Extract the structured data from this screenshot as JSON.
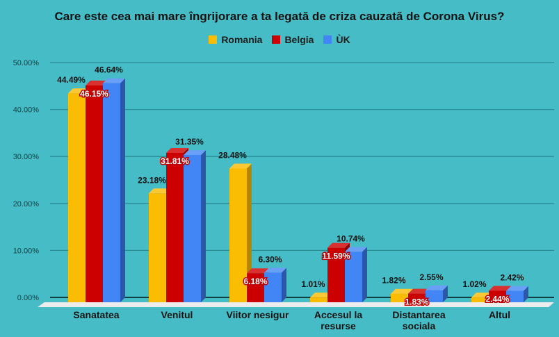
{
  "chart_data": {
    "type": "bar",
    "title": "Care este cea mai mare îngrijorare a ta legată de criza cauzată de Corona Virus?",
    "xlabel": "",
    "ylabel": "",
    "ylim": [
      0,
      50
    ],
    "yticks": [
      "0.00%",
      "10.00%",
      "20.00%",
      "30.00%",
      "40.00%",
      "50.00%"
    ],
    "grid": true,
    "legend_position": "top",
    "categories": [
      "Sanatatea",
      "Venitul",
      "Viitor nesigur",
      "Accesul la resurse",
      "Distantarea sociala",
      "Altul"
    ],
    "category_lines": [
      [
        "Sanatatea"
      ],
      [
        "Venitul"
      ],
      [
        "Viitor nesigur"
      ],
      [
        "Accesul la",
        "resurse"
      ],
      [
        "Distantarea",
        "sociala"
      ],
      [
        "Altul"
      ]
    ],
    "series": [
      {
        "name": "Romania",
        "color": "#fbbc04",
        "side": "#b38800",
        "top": "#fcc934",
        "values": [
          44.49,
          23.18,
          28.48,
          1.01,
          1.82,
          1.02
        ],
        "labels": [
          "44.49%",
          "23.18%",
          "28.48%",
          "1.01%",
          "1.82%",
          "1.02%"
        ],
        "label_style": "plain"
      },
      {
        "name": "Belgia",
        "color": "#cc0000",
        "side": "#8e0000",
        "top": "#d93030",
        "values": [
          46.15,
          31.81,
          6.18,
          11.59,
          1.83,
          2.44
        ],
        "labels": [
          "46.15%",
          "31.81%",
          "6.18%",
          "11.59%",
          "1.83%",
          "2.44%"
        ],
        "label_style": "outlined"
      },
      {
        "name": "ÙK",
        "color": "#4285f4",
        "side": "#2d56a8",
        "top": "#6a9ff6",
        "values": [
          46.64,
          31.35,
          6.3,
          10.74,
          2.55,
          2.42
        ],
        "labels": [
          "46.64%",
          "31.35%",
          "6.30%",
          "10.74%",
          "2.55%",
          "2.42%"
        ],
        "label_style": "plain"
      }
    ]
  }
}
